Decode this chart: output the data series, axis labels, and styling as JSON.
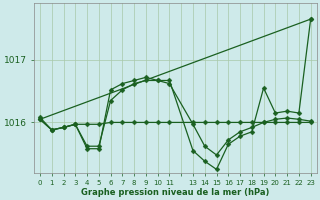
{
  "bg_color": "#ceeaea",
  "grid_color": "#a8c8a8",
  "line_color": "#1a6020",
  "marker_color": "#1a6020",
  "title": "Graphe pression niveau de la mer (hPa)",
  "ylabel_ticks": [
    1016,
    1017
  ],
  "xlim": [
    -0.5,
    23.5
  ],
  "ylim": [
    1015.2,
    1017.9
  ],
  "x_ticks": [
    0,
    1,
    2,
    3,
    4,
    5,
    6,
    7,
    8,
    9,
    10,
    11,
    13,
    14,
    15,
    16,
    17,
    18,
    19,
    20,
    21,
    22,
    23
  ],
  "series_flat": {
    "x": [
      0,
      1,
      2,
      3,
      4,
      5,
      6,
      7,
      8,
      9,
      10,
      11,
      13,
      14,
      15,
      16,
      17,
      18,
      19,
      20,
      21,
      22,
      23
    ],
    "y": [
      1016.05,
      1015.88,
      1015.92,
      1015.97,
      1015.97,
      1015.97,
      1016.0,
      1016.0,
      1016.0,
      1016.0,
      1016.0,
      1016.0,
      1016.0,
      1016.0,
      1016.0,
      1016.0,
      1016.0,
      1016.0,
      1016.0,
      1016.0,
      1016.0,
      1016.0,
      1016.0
    ]
  },
  "series_diag": {
    "x": [
      0,
      23
    ],
    "y": [
      1016.05,
      1017.65
    ]
  },
  "series_wave1": {
    "x": [
      0,
      1,
      2,
      3,
      4,
      5,
      6,
      7,
      8,
      9,
      10,
      11,
      13,
      14,
      15,
      16,
      17,
      18,
      19,
      20,
      21,
      22,
      23
    ],
    "y": [
      1016.05,
      1015.88,
      1015.92,
      1015.97,
      1015.62,
      1015.62,
      1016.35,
      1016.52,
      1016.62,
      1016.67,
      1016.67,
      1016.62,
      1015.97,
      1015.62,
      1015.48,
      1015.72,
      1015.85,
      1015.92,
      1016.0,
      1016.05,
      1016.07,
      1016.05,
      1016.02
    ]
  },
  "series_wave2": {
    "x": [
      0,
      1,
      2,
      3,
      4,
      5,
      6,
      7,
      8,
      9,
      10,
      11,
      13,
      14,
      15,
      16,
      17,
      18,
      19,
      20,
      21,
      22,
      23
    ],
    "y": [
      1016.08,
      1015.88,
      1015.92,
      1015.97,
      1015.58,
      1015.58,
      1016.52,
      1016.62,
      1016.67,
      1016.72,
      1016.67,
      1016.67,
      1015.55,
      1015.38,
      1015.25,
      1015.65,
      1015.78,
      1015.85,
      1016.55,
      1016.15,
      1016.18,
      1016.15,
      1017.65
    ]
  }
}
